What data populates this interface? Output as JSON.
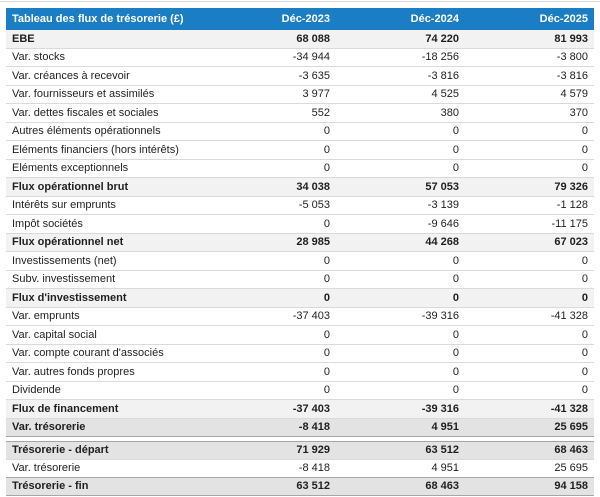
{
  "table": {
    "title": "Tableau des flux de trésorerie (£)",
    "columns": [
      "Déc-2023",
      "Déc-2024",
      "Déc-2025"
    ],
    "rows": [
      {
        "kind": "subtotal",
        "label": "EBE",
        "values": [
          "68 088",
          "74 220",
          "81 993"
        ]
      },
      {
        "kind": "line",
        "label": "Var. stocks",
        "values": [
          "-34 944",
          "-18 256",
          "-3 800"
        ]
      },
      {
        "kind": "line",
        "label": "Var. créances à recevoir",
        "values": [
          "-3 635",
          "-3 816",
          "-3 816"
        ]
      },
      {
        "kind": "line",
        "label": "Var. fournisseurs et assimilés",
        "values": [
          "3 977",
          "4 525",
          "4 579"
        ]
      },
      {
        "kind": "line",
        "label": "Var. dettes fiscales et sociales",
        "values": [
          "552",
          "380",
          "370"
        ]
      },
      {
        "kind": "line",
        "label": "Autres éléments opérationnels",
        "values": [
          "0",
          "0",
          "0"
        ]
      },
      {
        "kind": "line",
        "label": "Eléments financiers (hors intérêts)",
        "values": [
          "0",
          "0",
          "0"
        ]
      },
      {
        "kind": "line",
        "label": "Eléments exceptionnels",
        "values": [
          "0",
          "0",
          "0"
        ]
      },
      {
        "kind": "subtotal",
        "label": "Flux opérationnel brut",
        "values": [
          "34 038",
          "57 053",
          "79 326"
        ]
      },
      {
        "kind": "line",
        "label": "Intérêts sur emprunts",
        "values": [
          "-5 053",
          "-3 139",
          "-1 128"
        ]
      },
      {
        "kind": "line",
        "label": "Impôt sociétés",
        "values": [
          "0",
          "-9 646",
          "-11 175"
        ]
      },
      {
        "kind": "subtotal",
        "label": "Flux opérationnel net",
        "values": [
          "28 985",
          "44 268",
          "67 023"
        ]
      },
      {
        "kind": "line",
        "label": "Investissements (net)",
        "values": [
          "0",
          "0",
          "0"
        ]
      },
      {
        "kind": "line",
        "label": "Subv. investissement",
        "values": [
          "0",
          "0",
          "0"
        ]
      },
      {
        "kind": "subtotal",
        "label": "Flux d'investissement",
        "values": [
          "0",
          "0",
          "0"
        ]
      },
      {
        "kind": "line",
        "label": "Var. emprunts",
        "values": [
          "-37 403",
          "-39 316",
          "-41 328"
        ]
      },
      {
        "kind": "line",
        "label": "Var. capital social",
        "values": [
          "0",
          "0",
          "0"
        ]
      },
      {
        "kind": "line",
        "label": "Var. compte courant d'associés",
        "values": [
          "0",
          "0",
          "0"
        ]
      },
      {
        "kind": "line",
        "label": "Var. autres fonds propres",
        "values": [
          "0",
          "0",
          "0"
        ]
      },
      {
        "kind": "line",
        "label": "Dividende",
        "values": [
          "0",
          "0",
          "0"
        ]
      },
      {
        "kind": "subtotal",
        "label": "Flux de financement",
        "values": [
          "-37 403",
          "-39 316",
          "-41 328"
        ]
      },
      {
        "kind": "result",
        "label": "Var. trésorerie",
        "values": [
          "-8 418",
          "4 951",
          "25 695"
        ]
      },
      {
        "kind": "spacer"
      },
      {
        "kind": "opening",
        "label": "Trésorerie - départ",
        "values": [
          "71 929",
          "63 512",
          "68 463"
        ]
      },
      {
        "kind": "line",
        "label": "Var. trésorerie",
        "values": [
          "-8 418",
          "4 951",
          "25 695"
        ]
      },
      {
        "kind": "closing",
        "label": "Trésorerie - fin",
        "values": [
          "63 512",
          "68 463",
          "94 158"
        ]
      }
    ]
  },
  "colors": {
    "header_bg": "#1b7dc4",
    "header_text": "#ffffff",
    "subtotal_bg": "#f2f2f2",
    "result_bg": "#e3e3e3",
    "row_border": "#dadada",
    "strong_border": "#a6a6a6",
    "text": "#1f1f1f",
    "topline": "#d9d9d9"
  }
}
